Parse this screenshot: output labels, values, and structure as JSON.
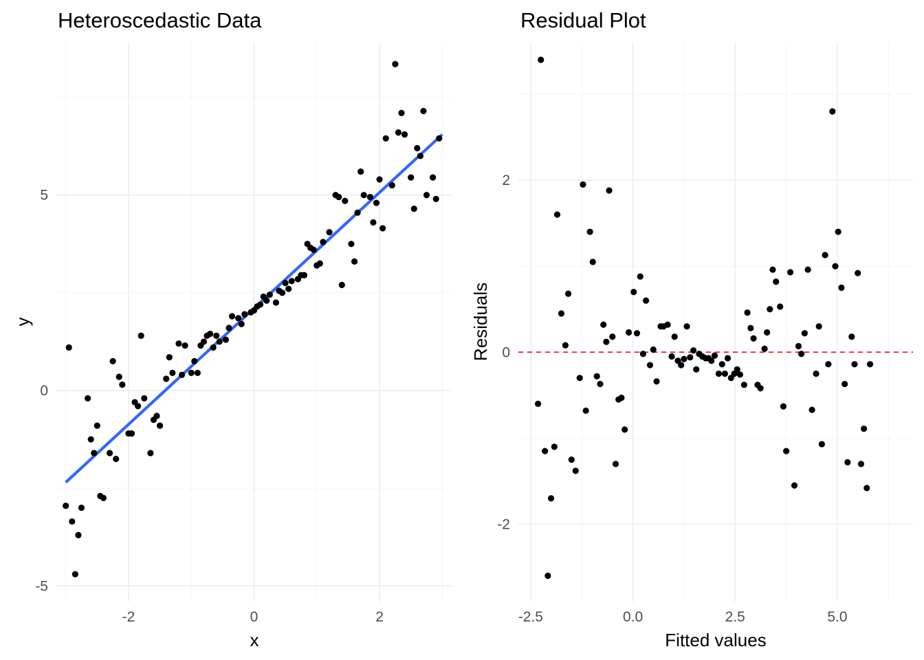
{
  "chart_data": [
    {
      "type": "scatter",
      "title": "Heteroscedastic Data",
      "xlabel": "x",
      "ylabel": "y",
      "xlim": [
        -3.15,
        3.15
      ],
      "ylim": [
        -5.4,
        8.9
      ],
      "x_ticks": [
        -2,
        0,
        2
      ],
      "x_tick_labels": [
        "-2",
        "0",
        "2"
      ],
      "y_ticks": [
        -5,
        0,
        5
      ],
      "y_tick_labels": [
        "-5",
        "0",
        "5"
      ],
      "grid": true,
      "point_color": "#000000",
      "fit_line": {
        "type": "linear",
        "color": "#3366FF",
        "x": [
          -3.0,
          3.0
        ],
        "y": [
          -2.35,
          6.55
        ]
      },
      "points": [
        [
          -3.0,
          -2.95
        ],
        [
          -2.95,
          1.1
        ],
        [
          -2.9,
          -3.35
        ],
        [
          -2.85,
          -4.7
        ],
        [
          -2.8,
          -3.7
        ],
        [
          -2.75,
          -3.0
        ],
        [
          -2.65,
          -0.2
        ],
        [
          -2.6,
          -1.25
        ],
        [
          -2.55,
          -1.6
        ],
        [
          -2.5,
          -0.9
        ],
        [
          -2.45,
          -2.7
        ],
        [
          -2.4,
          -2.75
        ],
        [
          -2.3,
          -1.6
        ],
        [
          -2.25,
          0.75
        ],
        [
          -2.2,
          -1.75
        ],
        [
          -2.15,
          0.35
        ],
        [
          -2.1,
          0.15
        ],
        [
          -2.0,
          -1.1
        ],
        [
          -1.95,
          -1.1
        ],
        [
          -1.9,
          -0.3
        ],
        [
          -1.85,
          -0.4
        ],
        [
          -1.8,
          1.4
        ],
        [
          -1.75,
          -0.2
        ],
        [
          -1.65,
          -1.6
        ],
        [
          -1.6,
          -0.75
        ],
        [
          -1.55,
          -0.65
        ],
        [
          -1.5,
          -0.9
        ],
        [
          -1.4,
          0.3
        ],
        [
          -1.35,
          0.85
        ],
        [
          -1.3,
          0.45
        ],
        [
          -1.2,
          1.2
        ],
        [
          -1.15,
          0.4
        ],
        [
          -1.1,
          1.15
        ],
        [
          -1.0,
          0.45
        ],
        [
          -0.95,
          0.75
        ],
        [
          -0.9,
          0.45
        ],
        [
          -0.85,
          1.15
        ],
        [
          -0.8,
          1.25
        ],
        [
          -0.75,
          1.4
        ],
        [
          -0.7,
          1.45
        ],
        [
          -0.65,
          1.1
        ],
        [
          -0.6,
          1.4
        ],
        [
          -0.55,
          1.25
        ],
        [
          -0.45,
          1.3
        ],
        [
          -0.4,
          1.6
        ],
        [
          -0.35,
          1.9
        ],
        [
          -0.25,
          1.85
        ],
        [
          -0.2,
          1.7
        ],
        [
          -0.15,
          1.95
        ],
        [
          -0.05,
          2.0
        ],
        [
          0.0,
          2.05
        ],
        [
          0.05,
          2.15
        ],
        [
          0.1,
          2.2
        ],
        [
          0.15,
          2.4
        ],
        [
          0.2,
          2.3
        ],
        [
          0.25,
          2.45
        ],
        [
          0.35,
          2.25
        ],
        [
          0.4,
          2.55
        ],
        [
          0.45,
          2.5
        ],
        [
          0.5,
          2.75
        ],
        [
          0.55,
          2.6
        ],
        [
          0.6,
          2.8
        ],
        [
          0.7,
          2.85
        ],
        [
          0.75,
          2.95
        ],
        [
          0.8,
          2.95
        ],
        [
          0.85,
          3.75
        ],
        [
          0.9,
          3.65
        ],
        [
          0.95,
          3.6
        ],
        [
          1.0,
          3.2
        ],
        [
          1.05,
          3.25
        ],
        [
          1.1,
          3.8
        ],
        [
          1.2,
          4.05
        ],
        [
          1.3,
          5.0
        ],
        [
          1.35,
          4.95
        ],
        [
          1.4,
          2.7
        ],
        [
          1.45,
          4.85
        ],
        [
          1.55,
          3.75
        ],
        [
          1.6,
          3.3
        ],
        [
          1.65,
          4.55
        ],
        [
          1.7,
          5.6
        ],
        [
          1.75,
          5.0
        ],
        [
          1.85,
          4.95
        ],
        [
          1.9,
          4.3
        ],
        [
          1.95,
          4.8
        ],
        [
          2.0,
          5.4
        ],
        [
          2.05,
          4.15
        ],
        [
          2.1,
          6.45
        ],
        [
          2.2,
          5.25
        ],
        [
          2.25,
          8.35
        ],
        [
          2.3,
          6.6
        ],
        [
          2.35,
          7.1
        ],
        [
          2.4,
          6.55
        ],
        [
          2.5,
          5.45
        ],
        [
          2.55,
          4.65
        ],
        [
          2.6,
          6.2
        ],
        [
          2.65,
          6.0
        ],
        [
          2.7,
          7.15
        ],
        [
          2.75,
          5.0
        ],
        [
          2.85,
          5.45
        ],
        [
          2.9,
          4.9
        ],
        [
          2.95,
          6.45
        ]
      ]
    },
    {
      "type": "scatter",
      "title": "Residual Plot",
      "xlabel": "Fitted values",
      "ylabel": "Residuals",
      "xlim": [
        -2.8,
        6.85
      ],
      "ylim": [
        -2.9,
        3.6
      ],
      "x_ticks": [
        -2.5,
        0.0,
        2.5,
        5.0
      ],
      "x_tick_labels": [
        "-2.5",
        "0.0",
        "2.5",
        "5.0"
      ],
      "y_ticks": [
        -2,
        0,
        2
      ],
      "y_tick_labels": [
        "-2",
        "0",
        "2"
      ],
      "grid": true,
      "point_color": "#000000",
      "reference_line": {
        "y": 0,
        "color": "#E41A1C",
        "style": "dashed"
      },
      "points": [
        [
          -2.32,
          -0.6
        ],
        [
          -2.25,
          3.4
        ],
        [
          -2.15,
          -1.15
        ],
        [
          -2.08,
          -2.6
        ],
        [
          -2.0,
          -1.7
        ],
        [
          -1.92,
          -1.1
        ],
        [
          -1.85,
          1.6
        ],
        [
          -1.75,
          0.45
        ],
        [
          -1.65,
          0.08
        ],
        [
          -1.58,
          0.68
        ],
        [
          -1.5,
          -1.25
        ],
        [
          -1.4,
          -1.38
        ],
        [
          -1.3,
          -0.3
        ],
        [
          -1.22,
          1.95
        ],
        [
          -1.15,
          -0.68
        ],
        [
          -1.05,
          1.4
        ],
        [
          -0.98,
          1.05
        ],
        [
          -0.88,
          -0.28
        ],
        [
          -0.8,
          -0.37
        ],
        [
          -0.72,
          0.32
        ],
        [
          -0.65,
          0.12
        ],
        [
          -0.58,
          1.88
        ],
        [
          -0.5,
          0.18
        ],
        [
          -0.42,
          -1.3
        ],
        [
          -0.35,
          -0.55
        ],
        [
          -0.28,
          -0.53
        ],
        [
          -0.2,
          -0.9
        ],
        [
          -0.1,
          0.23
        ],
        [
          0.02,
          0.7
        ],
        [
          0.1,
          0.22
        ],
        [
          0.18,
          0.88
        ],
        [
          0.25,
          -0.02
        ],
        [
          0.32,
          0.6
        ],
        [
          0.42,
          -0.15
        ],
        [
          0.5,
          0.03
        ],
        [
          0.58,
          -0.34
        ],
        [
          0.68,
          0.3
        ],
        [
          0.75,
          0.3
        ],
        [
          0.85,
          0.32
        ],
        [
          0.95,
          -0.05
        ],
        [
          1.02,
          0.18
        ],
        [
          1.1,
          -0.1
        ],
        [
          1.18,
          -0.15
        ],
        [
          1.25,
          -0.08
        ],
        [
          1.32,
          0.3
        ],
        [
          1.4,
          -0.06
        ],
        [
          1.48,
          0.02
        ],
        [
          1.55,
          -0.2
        ],
        [
          1.62,
          -0.02
        ],
        [
          1.7,
          -0.05
        ],
        [
          1.78,
          -0.07
        ],
        [
          1.85,
          -0.07
        ],
        [
          1.92,
          -0.1
        ],
        [
          2.0,
          -0.04
        ],
        [
          2.1,
          -0.25
        ],
        [
          2.18,
          -0.14
        ],
        [
          2.25,
          -0.25
        ],
        [
          2.32,
          -0.07
        ],
        [
          2.4,
          -0.3
        ],
        [
          2.48,
          -0.25
        ],
        [
          2.55,
          -0.2
        ],
        [
          2.62,
          -0.26
        ],
        [
          2.72,
          -0.38
        ],
        [
          2.8,
          0.46
        ],
        [
          2.88,
          0.28
        ],
        [
          2.95,
          0.16
        ],
        [
          3.05,
          -0.38
        ],
        [
          3.12,
          -0.42
        ],
        [
          3.22,
          0.04
        ],
        [
          3.28,
          0.23
        ],
        [
          3.35,
          0.5
        ],
        [
          3.42,
          0.96
        ],
        [
          3.5,
          0.82
        ],
        [
          3.6,
          0.53
        ],
        [
          3.68,
          -0.63
        ],
        [
          3.75,
          -1.15
        ],
        [
          3.85,
          0.93
        ],
        [
          3.95,
          -1.55
        ],
        [
          4.05,
          0.07
        ],
        [
          4.12,
          -0.02
        ],
        [
          4.2,
          0.22
        ],
        [
          4.28,
          0.96
        ],
        [
          4.38,
          -0.67
        ],
        [
          4.48,
          -0.25
        ],
        [
          4.55,
          0.3
        ],
        [
          4.62,
          -1.07
        ],
        [
          4.7,
          1.13
        ],
        [
          4.78,
          -0.14
        ],
        [
          4.88,
          2.8
        ],
        [
          4.95,
          1.0
        ],
        [
          5.02,
          1.4
        ],
        [
          5.1,
          0.75
        ],
        [
          5.18,
          -0.37
        ],
        [
          5.25,
          -1.28
        ],
        [
          5.35,
          0.18
        ],
        [
          5.42,
          -0.14
        ],
        [
          5.5,
          0.92
        ],
        [
          5.58,
          -1.3
        ],
        [
          5.65,
          -0.89
        ],
        [
          5.72,
          -1.58
        ],
        [
          5.8,
          -0.14
        ]
      ]
    }
  ]
}
